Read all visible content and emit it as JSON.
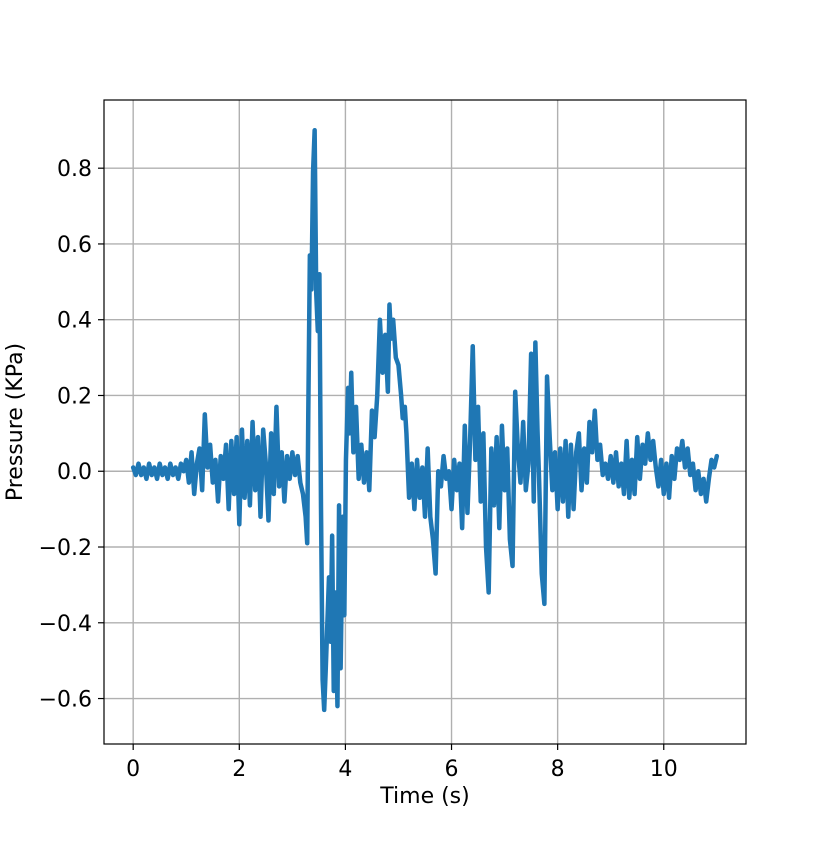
{
  "chart_data": {
    "type": "line",
    "title": "",
    "xlabel": "Time (s)",
    "ylabel": "Pressure (KPa)",
    "xlim": [
      -0.55,
      11.55
    ],
    "ylim": [
      -0.72,
      0.98
    ],
    "xticks": [
      0,
      2,
      4,
      6,
      8,
      10
    ],
    "xtick_labels": [
      "0",
      "2",
      "4",
      "6",
      "8",
      "10"
    ],
    "yticks": [
      -0.6,
      -0.4,
      -0.2,
      0.0,
      0.2,
      0.4,
      0.6,
      0.8
    ],
    "ytick_labels": [
      "−0.6",
      "−0.4",
      "−0.2",
      "0.0",
      "0.2",
      "0.4",
      "0.6",
      "0.8"
    ],
    "grid": true,
    "legend": "none",
    "colors": {
      "line": "#1f77b4",
      "grid": "#b0b0b0",
      "axes": "#000000"
    },
    "series": [
      {
        "values": [
          [
            0.0,
            0.01
          ],
          [
            0.05,
            -0.01
          ],
          [
            0.1,
            0.02
          ],
          [
            0.15,
            -0.01
          ],
          [
            0.2,
            0.01
          ],
          [
            0.25,
            -0.02
          ],
          [
            0.3,
            0.02
          ],
          [
            0.35,
            -0.01
          ],
          [
            0.4,
            0.01
          ],
          [
            0.45,
            -0.02
          ],
          [
            0.5,
            0.02
          ],
          [
            0.55,
            -0.01
          ],
          [
            0.6,
            0.01
          ],
          [
            0.65,
            -0.02
          ],
          [
            0.7,
            0.02
          ],
          [
            0.75,
            -0.01
          ],
          [
            0.8,
            0.01
          ],
          [
            0.85,
            -0.02
          ],
          [
            0.9,
            0.02
          ],
          [
            0.95,
            0.0
          ],
          [
            1.0,
            0.03
          ],
          [
            1.05,
            -0.03
          ],
          [
            1.1,
            0.05
          ],
          [
            1.15,
            -0.06
          ],
          [
            1.2,
            0.02
          ],
          [
            1.25,
            0.06
          ],
          [
            1.3,
            -0.05
          ],
          [
            1.35,
            0.15
          ],
          [
            1.4,
            0.01
          ],
          [
            1.45,
            0.07
          ],
          [
            1.5,
            -0.03
          ],
          [
            1.55,
            0.03
          ],
          [
            1.6,
            -0.08
          ],
          [
            1.65,
            0.04
          ],
          [
            1.7,
            -0.02
          ],
          [
            1.75,
            0.07
          ],
          [
            1.8,
            -0.1
          ],
          [
            1.85,
            0.08
          ],
          [
            1.9,
            -0.06
          ],
          [
            1.95,
            0.09
          ],
          [
            2.0,
            -0.14
          ],
          [
            2.05,
            0.11
          ],
          [
            2.1,
            -0.07
          ],
          [
            2.15,
            0.08
          ],
          [
            2.2,
            -0.09
          ],
          [
            2.25,
            0.13
          ],
          [
            2.3,
            -0.05
          ],
          [
            2.35,
            0.09
          ],
          [
            2.4,
            -0.12
          ],
          [
            2.45,
            0.11
          ],
          [
            2.5,
            0.02
          ],
          [
            2.55,
            -0.13
          ],
          [
            2.6,
            0.1
          ],
          [
            2.65,
            -0.06
          ],
          [
            2.7,
            0.17
          ],
          [
            2.75,
            -0.04
          ],
          [
            2.8,
            0.05
          ],
          [
            2.85,
            -0.08
          ],
          [
            2.9,
            0.04
          ],
          [
            2.95,
            -0.02
          ],
          [
            3.0,
            0.05
          ],
          [
            3.05,
            -0.01
          ],
          [
            3.1,
            0.04
          ],
          [
            3.15,
            -0.03
          ],
          [
            3.2,
            -0.06
          ],
          [
            3.25,
            -0.12
          ],
          [
            3.28,
            -0.19
          ],
          [
            3.3,
            0.15
          ],
          [
            3.33,
            0.57
          ],
          [
            3.36,
            0.48
          ],
          [
            3.39,
            0.79
          ],
          [
            3.42,
            0.9
          ],
          [
            3.45,
            0.47
          ],
          [
            3.48,
            0.37
          ],
          [
            3.51,
            0.52
          ],
          [
            3.54,
            -0.1
          ],
          [
            3.57,
            -0.55
          ],
          [
            3.6,
            -0.63
          ],
          [
            3.63,
            -0.52
          ],
          [
            3.66,
            -0.4
          ],
          [
            3.69,
            -0.28
          ],
          [
            3.72,
            -0.45
          ],
          [
            3.75,
            -0.17
          ],
          [
            3.78,
            -0.58
          ],
          [
            3.81,
            -0.32
          ],
          [
            3.85,
            -0.62
          ],
          [
            3.88,
            -0.09
          ],
          [
            3.91,
            -0.52
          ],
          [
            3.95,
            -0.12
          ],
          [
            3.98,
            -0.38
          ],
          [
            4.01,
            0.03
          ],
          [
            4.05,
            0.22
          ],
          [
            4.08,
            0.1
          ],
          [
            4.11,
            0.26
          ],
          [
            4.15,
            0.05
          ],
          [
            4.2,
            0.17
          ],
          [
            4.25,
            -0.02
          ],
          [
            4.3,
            0.07
          ],
          [
            4.35,
            -0.03
          ],
          [
            4.4,
            0.05
          ],
          [
            4.45,
            -0.05
          ],
          [
            4.5,
            0.16
          ],
          [
            4.55,
            0.09
          ],
          [
            4.6,
            0.2
          ],
          [
            4.65,
            0.4
          ],
          [
            4.7,
            0.26
          ],
          [
            4.75,
            0.36
          ],
          [
            4.8,
            0.21
          ],
          [
            4.83,
            0.44
          ],
          [
            4.86,
            0.35
          ],
          [
            4.9,
            0.4
          ],
          [
            4.95,
            0.3
          ],
          [
            5.0,
            0.28
          ],
          [
            5.05,
            0.2
          ],
          [
            5.08,
            0.14
          ],
          [
            5.12,
            0.17
          ],
          [
            5.15,
            0.1
          ],
          [
            5.2,
            -0.07
          ],
          [
            5.25,
            0.02
          ],
          [
            5.3,
            -0.1
          ],
          [
            5.35,
            0.03
          ],
          [
            5.4,
            -0.07
          ],
          [
            5.45,
            0.01
          ],
          [
            5.5,
            -0.12
          ],
          [
            5.55,
            0.06
          ],
          [
            5.6,
            -0.12
          ],
          [
            5.65,
            -0.18
          ],
          [
            5.7,
            -0.27
          ],
          [
            5.75,
            0.0
          ],
          [
            5.8,
            -0.04
          ],
          [
            5.85,
            0.04
          ],
          [
            5.9,
            -0.02
          ],
          [
            5.95,
            0.0
          ],
          [
            6.0,
            -0.1
          ],
          [
            6.05,
            0.03
          ],
          [
            6.1,
            -0.05
          ],
          [
            6.15,
            0.02
          ],
          [
            6.2,
            -0.15
          ],
          [
            6.25,
            0.12
          ],
          [
            6.3,
            -0.11
          ],
          [
            6.35,
            0.08
          ],
          [
            6.4,
            0.33
          ],
          [
            6.45,
            0.03
          ],
          [
            6.5,
            0.17
          ],
          [
            6.55,
            -0.08
          ],
          [
            6.6,
            0.1
          ],
          [
            6.65,
            -0.2
          ],
          [
            6.7,
            -0.32
          ],
          [
            6.75,
            0.06
          ],
          [
            6.8,
            -0.09
          ],
          [
            6.85,
            0.09
          ],
          [
            6.9,
            -0.15
          ],
          [
            6.95,
            0.12
          ],
          [
            7.0,
            -0.05
          ],
          [
            7.05,
            0.06
          ],
          [
            7.1,
            -0.18
          ],
          [
            7.15,
            -0.25
          ],
          [
            7.2,
            0.21
          ],
          [
            7.25,
            0.06
          ],
          [
            7.3,
            -0.03
          ],
          [
            7.35,
            0.13
          ],
          [
            7.4,
            -0.05
          ],
          [
            7.45,
            0.02
          ],
          [
            7.5,
            0.31
          ],
          [
            7.55,
            -0.08
          ],
          [
            7.58,
            0.34
          ],
          [
            7.62,
            0.11
          ],
          [
            7.65,
            -0.02
          ],
          [
            7.7,
            -0.27
          ],
          [
            7.75,
            -0.35
          ],
          [
            7.8,
            0.25
          ],
          [
            7.85,
            0.09
          ],
          [
            7.9,
            -0.05
          ],
          [
            7.95,
            0.05
          ],
          [
            8.0,
            -0.1
          ],
          [
            8.05,
            0.06
          ],
          [
            8.1,
            -0.08
          ],
          [
            8.15,
            0.08
          ],
          [
            8.2,
            -0.12
          ],
          [
            8.25,
            0.07
          ],
          [
            8.3,
            -0.1
          ],
          [
            8.35,
            0.05
          ],
          [
            8.4,
            0.1
          ],
          [
            8.45,
            -0.05
          ],
          [
            8.5,
            0.06
          ],
          [
            8.55,
            -0.03
          ],
          [
            8.6,
            0.13
          ],
          [
            8.65,
            0.05
          ],
          [
            8.7,
            0.16
          ],
          [
            8.75,
            0.03
          ],
          [
            8.8,
            0.07
          ],
          [
            8.85,
            -0.01
          ],
          [
            8.9,
            0.02
          ],
          [
            8.95,
            -0.02
          ],
          [
            9.0,
            0.04
          ],
          [
            9.05,
            -0.03
          ],
          [
            9.1,
            0.05
          ],
          [
            9.15,
            -0.04
          ],
          [
            9.2,
            0.02
          ],
          [
            9.25,
            -0.06
          ],
          [
            9.3,
            0.08
          ],
          [
            9.35,
            -0.07
          ],
          [
            9.4,
            0.03
          ],
          [
            9.45,
            -0.06
          ],
          [
            9.5,
            0.09
          ],
          [
            9.55,
            -0.02
          ],
          [
            9.6,
            0.07
          ],
          [
            9.65,
            0.02
          ],
          [
            9.7,
            0.1
          ],
          [
            9.75,
            0.03
          ],
          [
            9.8,
            0.08
          ],
          [
            9.85,
            0.01
          ],
          [
            9.9,
            -0.04
          ],
          [
            9.95,
            0.03
          ],
          [
            10.0,
            -0.06
          ],
          [
            10.05,
            0.02
          ],
          [
            10.1,
            -0.07
          ],
          [
            10.15,
            0.04
          ],
          [
            10.2,
            -0.02
          ],
          [
            10.25,
            0.06
          ],
          [
            10.3,
            0.03
          ],
          [
            10.35,
            0.08
          ],
          [
            10.4,
            0.01
          ],
          [
            10.45,
            0.06
          ],
          [
            10.5,
            -0.01
          ],
          [
            10.55,
            0.02
          ],
          [
            10.6,
            -0.05
          ],
          [
            10.65,
            0.0
          ],
          [
            10.7,
            -0.06
          ],
          [
            10.75,
            -0.02
          ],
          [
            10.8,
            -0.08
          ],
          [
            10.85,
            -0.02
          ],
          [
            10.9,
            0.03
          ],
          [
            10.95,
            0.01
          ],
          [
            11.0,
            0.04
          ]
        ]
      }
    ]
  }
}
